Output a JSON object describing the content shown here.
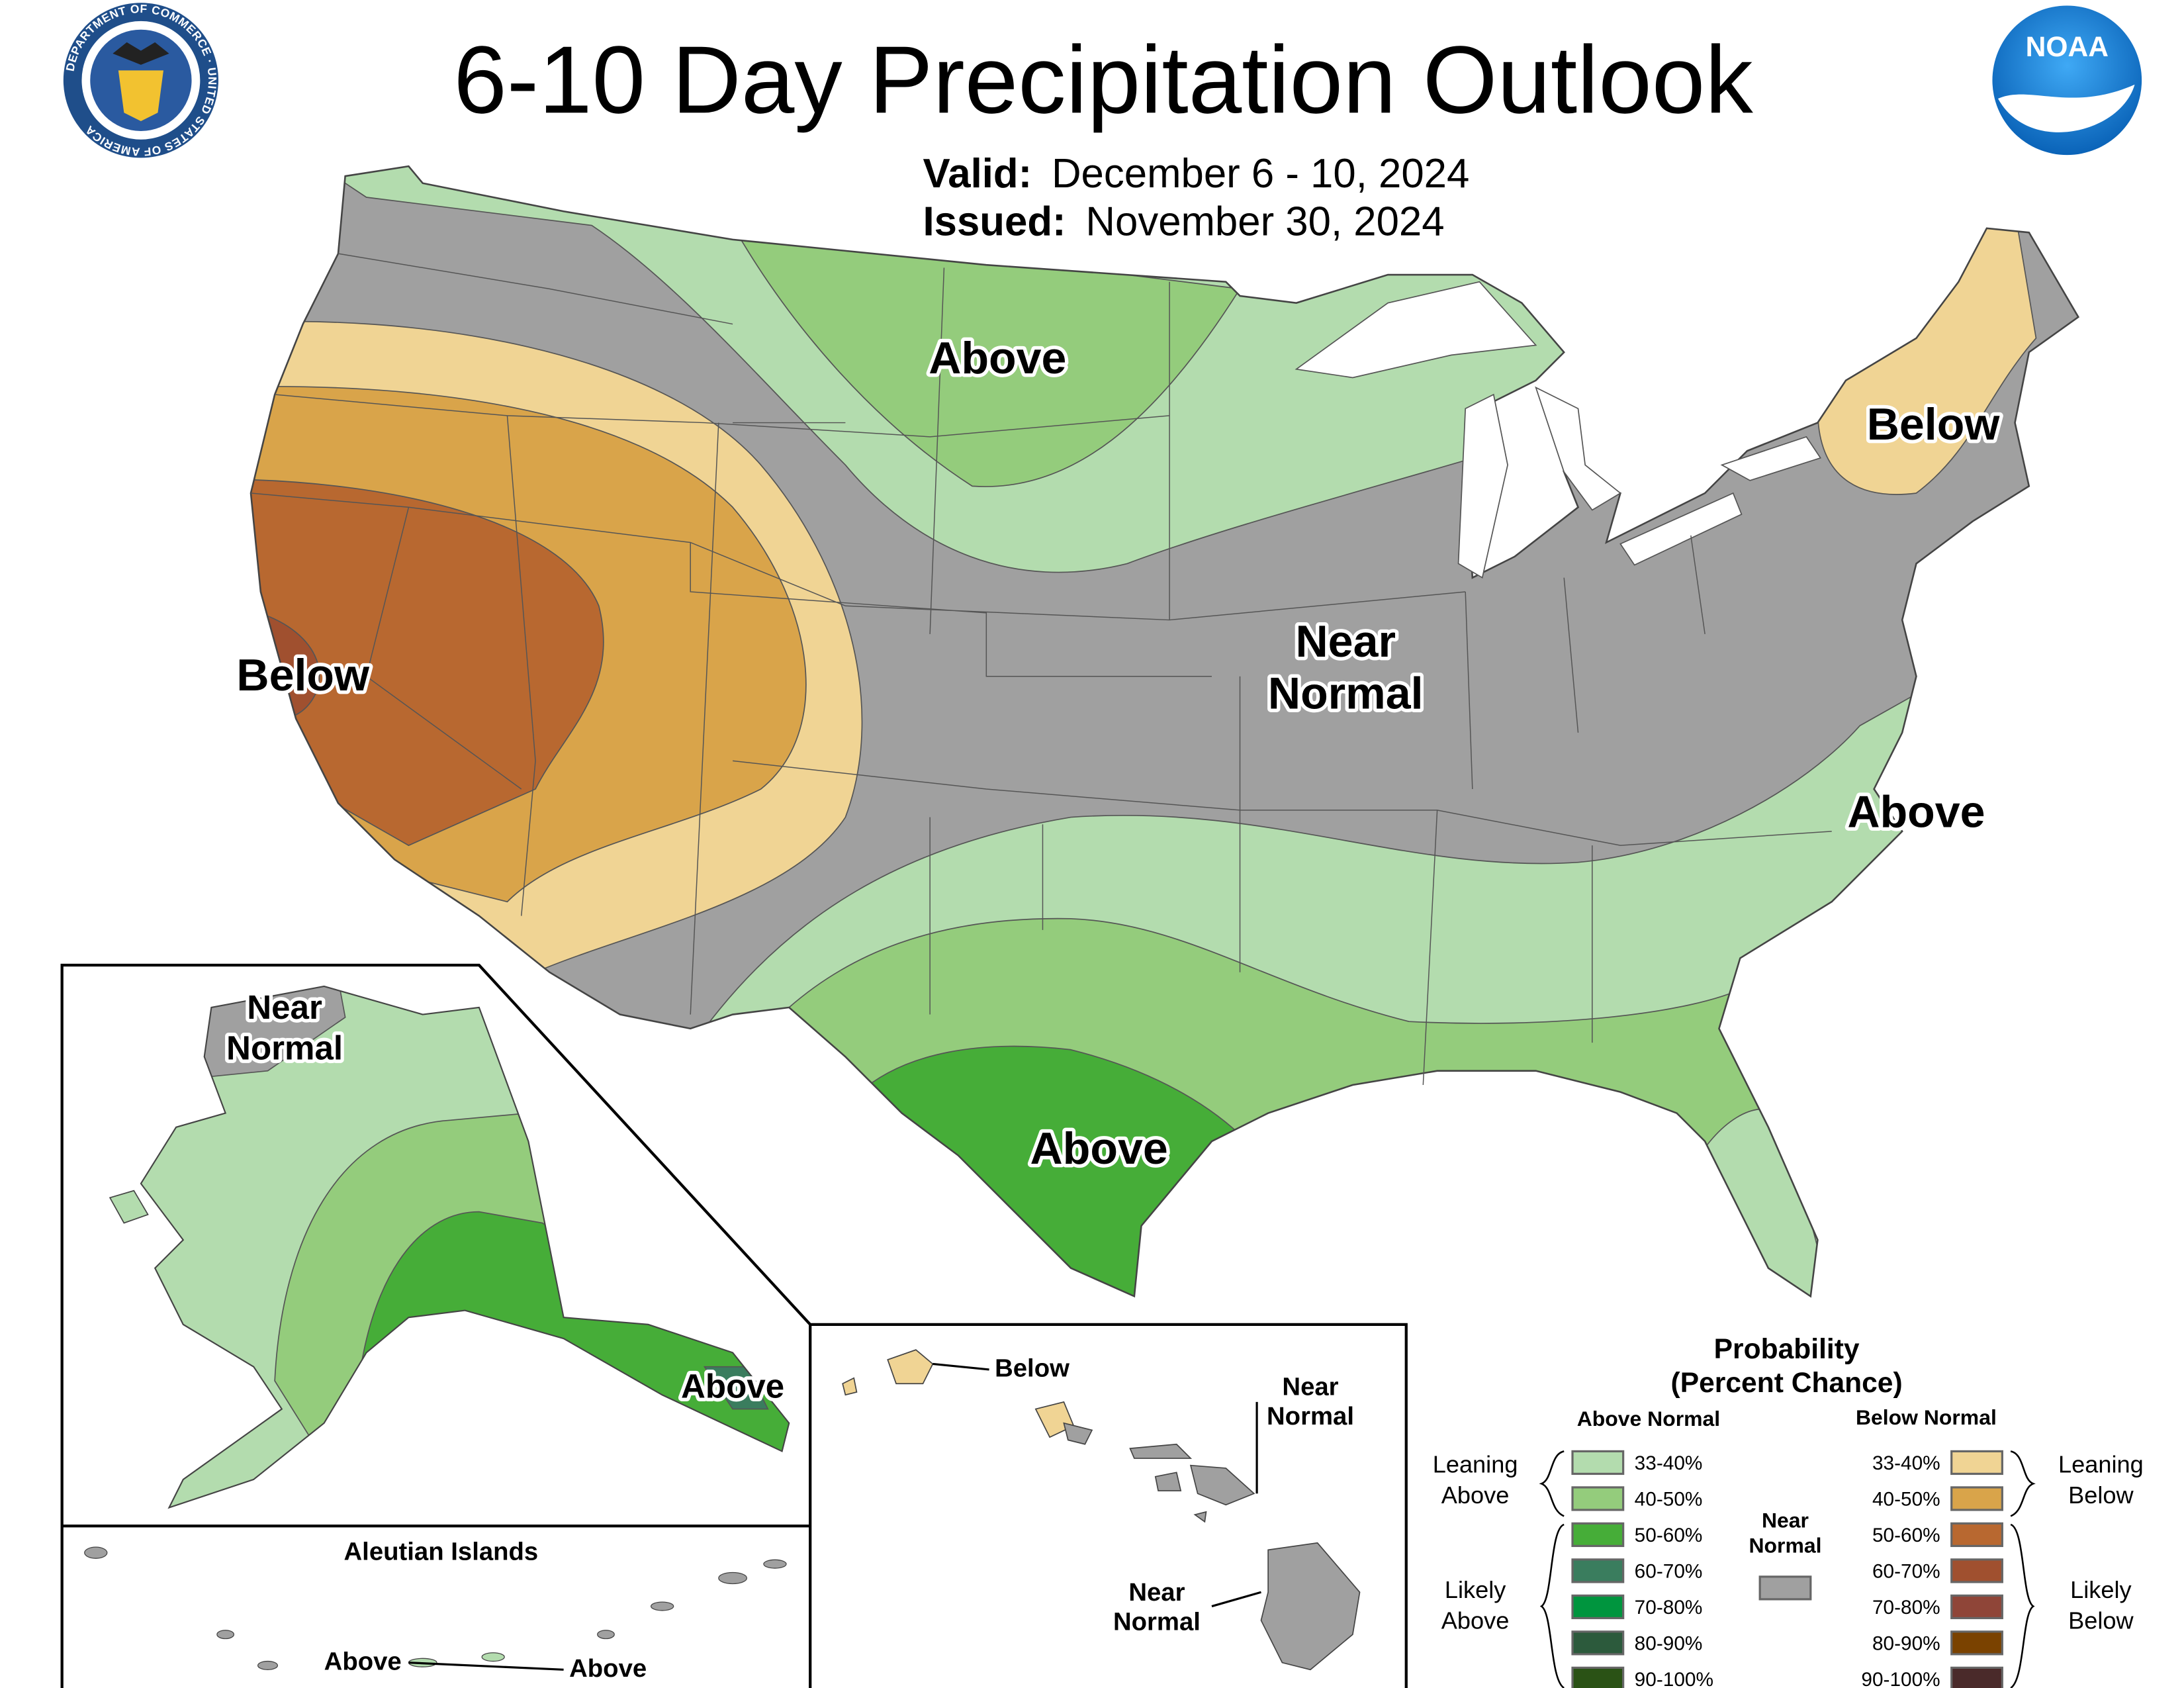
{
  "header": {
    "title": "6-10 Day Precipitation Outlook",
    "valid_label": "Valid:",
    "valid_value": "December 6 - 10, 2024",
    "issued_label": "Issued:",
    "issued_value": "November 30, 2024",
    "left_logo": "Department of Commerce seal",
    "left_logo_text": "DEPARTMENT OF COMMERCE · UNITED STATES OF AMERICA",
    "right_logo": "NOAA logo",
    "right_logo_text": "NOAA"
  },
  "colors": {
    "near_normal": "#a0a0a0",
    "outline": "#555555",
    "water": "#ffffff"
  },
  "map_labels": {
    "conus_above_north": "Above",
    "conus_below_northeast": "Below",
    "conus_below_west": "Below",
    "conus_near_normal_1": "Near",
    "conus_near_normal_2": "Normal",
    "conus_above_southeast": "Above",
    "conus_above_texas": "Above",
    "alaska_near_1": "Near",
    "alaska_near_2": "Normal",
    "alaska_above": "Above",
    "aleutian_title": "Aleutian Islands",
    "aleutian_above_1": "Above",
    "aleutian_above_2": "Above",
    "hawaii_below": "Below",
    "hawaii_near_a_1": "Near",
    "hawaii_near_a_2": "Normal",
    "hawaii_near_b_1": "Near",
    "hawaii_near_b_2": "Normal"
  },
  "legend": {
    "title_1": "Probability",
    "title_2": "(Percent Chance)",
    "above_header": "Above Normal",
    "below_header": "Below Normal",
    "leaning_above_1": "Leaning",
    "leaning_above_2": "Above",
    "likely_above_1": "Likely",
    "likely_above_2": "Above",
    "leaning_below_1": "Leaning",
    "leaning_below_2": "Below",
    "likely_below_1": "Likely",
    "likely_below_2": "Below",
    "near_1": "Near",
    "near_2": "Normal",
    "above": [
      {
        "range": "33-40%",
        "color": "#b3dcae"
      },
      {
        "range": "40-50%",
        "color": "#94cc7c"
      },
      {
        "range": "50-60%",
        "color": "#46ad38"
      },
      {
        "range": "60-70%",
        "color": "#3a7d5e"
      },
      {
        "range": "70-80%",
        "color": "#00953e"
      },
      {
        "range": "80-90%",
        "color": "#2c5a3c"
      },
      {
        "range": "90-100%",
        "color": "#2a5215"
      }
    ],
    "below": [
      {
        "range": "33-40%",
        "color": "#f0d494"
      },
      {
        "range": "40-50%",
        "color": "#d9a44a"
      },
      {
        "range": "50-60%",
        "color": "#b86830"
      },
      {
        "range": "60-70%",
        "color": "#a0502f"
      },
      {
        "range": "70-80%",
        "color": "#8f4538"
      },
      {
        "range": "80-90%",
        "color": "#7a4200"
      },
      {
        "range": "90-100%",
        "color": "#4a2a2a"
      }
    ]
  }
}
